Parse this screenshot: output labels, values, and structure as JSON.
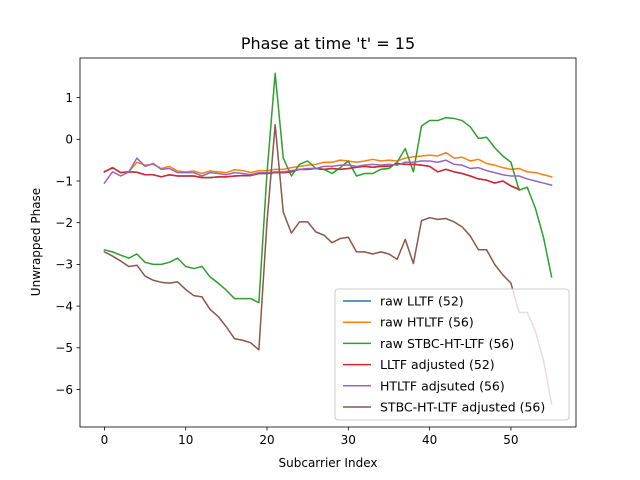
{
  "chart_data": {
    "type": "line",
    "title": "Phase at time 't' = 15",
    "xlabel": "Subcarrier Index",
    "ylabel": "Unwrapped Phase",
    "xlim": [
      -3,
      58
    ],
    "ylim": [
      -6.9,
      1.95
    ],
    "xticks": [
      0,
      10,
      20,
      30,
      40,
      50
    ],
    "yticks": [
      1,
      0,
      -1,
      -2,
      -3,
      -4,
      -5,
      -6
    ],
    "ytick_labels": [
      "1",
      "0",
      "−1",
      "−2",
      "−3",
      "−4",
      "−5",
      "−6"
    ],
    "grid": false,
    "legend_position": "lower-right",
    "series": [
      {
        "name": "raw LLTF (52)",
        "color": "#1f77b4",
        "x": [
          0,
          1,
          2,
          3,
          4,
          5,
          6,
          7,
          8,
          9,
          10,
          11,
          12,
          13,
          14,
          15,
          16,
          17,
          18,
          19,
          20,
          21,
          22,
          23,
          24,
          25,
          26,
          27,
          28,
          29,
          30,
          31,
          32,
          33,
          34,
          35,
          36,
          37,
          38,
          39,
          40,
          41,
          42,
          43,
          44,
          45,
          46,
          47,
          48,
          49,
          50,
          51
        ],
        "y": [
          -0.78,
          -0.68,
          -0.8,
          -0.78,
          -0.79,
          -0.85,
          -0.85,
          -0.9,
          -0.85,
          -0.88,
          -0.88,
          -0.88,
          -0.92,
          -0.92,
          -0.9,
          -0.9,
          -0.88,
          -0.87,
          -0.87,
          -0.82,
          -0.82,
          -0.8,
          -0.8,
          -0.78,
          -0.72,
          -0.72,
          -0.7,
          -0.72,
          -0.7,
          -0.72,
          -0.7,
          -0.67,
          -0.65,
          -0.67,
          -0.65,
          -0.65,
          -0.58,
          -0.6,
          -0.6,
          -0.62,
          -0.65,
          -0.78,
          -0.72,
          -0.78,
          -0.82,
          -0.88,
          -0.95,
          -0.98,
          -1.05,
          -1.0,
          -1.12,
          -1.2
        ]
      },
      {
        "name": "raw HTLTF (56)",
        "color": "#ff7f0e",
        "x": [
          0,
          1,
          2,
          3,
          4,
          5,
          6,
          7,
          8,
          9,
          10,
          11,
          12,
          13,
          14,
          15,
          16,
          17,
          18,
          19,
          20,
          21,
          22,
          23,
          24,
          25,
          26,
          27,
          28,
          29,
          30,
          31,
          32,
          33,
          34,
          35,
          36,
          37,
          38,
          39,
          40,
          41,
          42,
          43,
          44,
          45,
          46,
          47,
          48,
          49,
          50,
          51,
          52,
          53,
          54,
          55
        ],
        "y": [
          -0.78,
          -0.68,
          -0.8,
          -0.78,
          -0.55,
          -0.62,
          -0.6,
          -0.7,
          -0.65,
          -0.76,
          -0.78,
          -0.76,
          -0.82,
          -0.76,
          -0.78,
          -0.8,
          -0.73,
          -0.75,
          -0.8,
          -0.75,
          -0.75,
          -0.72,
          -0.72,
          -0.68,
          -0.65,
          -0.62,
          -0.6,
          -0.55,
          -0.55,
          -0.5,
          -0.52,
          -0.55,
          -0.52,
          -0.48,
          -0.52,
          -0.5,
          -0.52,
          -0.45,
          -0.42,
          -0.4,
          -0.38,
          -0.4,
          -0.32,
          -0.45,
          -0.43,
          -0.52,
          -0.48,
          -0.58,
          -0.62,
          -0.68,
          -0.72,
          -0.7,
          -0.78,
          -0.8,
          -0.85,
          -0.9
        ]
      },
      {
        "name": "raw STBC-HT-LTF (56)",
        "color": "#2ca02c",
        "x": [
          0,
          1,
          2,
          3,
          4,
          5,
          6,
          7,
          8,
          9,
          10,
          11,
          12,
          13,
          14,
          15,
          16,
          17,
          18,
          19,
          20,
          21,
          22,
          23,
          24,
          25,
          26,
          27,
          28,
          29,
          30,
          31,
          32,
          33,
          34,
          35,
          36,
          37,
          38,
          39,
          40,
          41,
          42,
          43,
          44,
          45,
          46,
          47,
          48,
          49,
          50,
          51,
          52,
          53,
          54,
          55
        ],
        "y": [
          -2.65,
          -2.7,
          -2.78,
          -2.85,
          -2.75,
          -2.95,
          -3.0,
          -3.0,
          -2.95,
          -2.85,
          -3.05,
          -3.1,
          -3.05,
          -3.3,
          -3.45,
          -3.62,
          -3.82,
          -3.82,
          -3.82,
          -3.92,
          -0.8,
          1.58,
          -0.45,
          -0.88,
          -0.6,
          -0.52,
          -0.7,
          -0.72,
          -0.82,
          -0.68,
          -0.52,
          -0.88,
          -0.82,
          -0.82,
          -0.72,
          -0.7,
          -0.55,
          -0.22,
          -0.78,
          0.32,
          0.45,
          0.45,
          0.52,
          0.5,
          0.45,
          0.3,
          0.02,
          0.05,
          -0.2,
          -0.4,
          -0.55,
          -1.22,
          -1.15,
          -1.65,
          -2.35,
          -3.3
        ]
      },
      {
        "name": "LLTF adjusted (52)",
        "color": "#d62728",
        "x": [
          0,
          1,
          2,
          3,
          4,
          5,
          6,
          7,
          8,
          9,
          10,
          11,
          12,
          13,
          14,
          15,
          16,
          17,
          18,
          19,
          20,
          21,
          22,
          23,
          24,
          25,
          26,
          27,
          28,
          29,
          30,
          31,
          32,
          33,
          34,
          35,
          36,
          37,
          38,
          39,
          40,
          41,
          42,
          43,
          44,
          45,
          46,
          47,
          48,
          49,
          50,
          51
        ],
        "y": [
          -0.78,
          -0.68,
          -0.8,
          -0.78,
          -0.79,
          -0.85,
          -0.85,
          -0.9,
          -0.85,
          -0.88,
          -0.88,
          -0.88,
          -0.92,
          -0.92,
          -0.9,
          -0.9,
          -0.88,
          -0.87,
          -0.87,
          -0.82,
          -0.82,
          -0.8,
          -0.8,
          -0.78,
          -0.72,
          -0.72,
          -0.7,
          -0.72,
          -0.7,
          -0.72,
          -0.7,
          -0.67,
          -0.65,
          -0.67,
          -0.65,
          -0.65,
          -0.58,
          -0.6,
          -0.6,
          -0.62,
          -0.65,
          -0.78,
          -0.72,
          -0.78,
          -0.82,
          -0.88,
          -0.95,
          -0.98,
          -1.05,
          -1.0,
          -1.12,
          -1.2
        ]
      },
      {
        "name": "HTLTF adjsuted (56)",
        "color": "#9467bd",
        "x": [
          0,
          1,
          2,
          3,
          4,
          5,
          6,
          7,
          8,
          9,
          10,
          11,
          12,
          13,
          14,
          15,
          16,
          17,
          18,
          19,
          20,
          21,
          22,
          23,
          24,
          25,
          26,
          27,
          28,
          29,
          30,
          31,
          32,
          33,
          34,
          35,
          36,
          37,
          38,
          39,
          40,
          41,
          42,
          43,
          44,
          45,
          46,
          47,
          48,
          49,
          50,
          51,
          52,
          53,
          54,
          55
        ],
        "y": [
          -1.05,
          -0.78,
          -0.88,
          -0.78,
          -0.45,
          -0.65,
          -0.58,
          -0.72,
          -0.7,
          -0.8,
          -0.8,
          -0.8,
          -0.88,
          -0.8,
          -0.82,
          -0.85,
          -0.8,
          -0.82,
          -0.85,
          -0.8,
          -0.8,
          -0.78,
          -0.78,
          -0.75,
          -0.72,
          -0.7,
          -0.7,
          -0.65,
          -0.65,
          -0.62,
          -0.62,
          -0.65,
          -0.62,
          -0.6,
          -0.62,
          -0.6,
          -0.62,
          -0.55,
          -0.55,
          -0.52,
          -0.52,
          -0.55,
          -0.5,
          -0.6,
          -0.62,
          -0.7,
          -0.68,
          -0.75,
          -0.8,
          -0.85,
          -0.88,
          -0.88,
          -0.95,
          -1.0,
          -1.05,
          -1.1
        ]
      },
      {
        "name": "STBC-HT-LTF adjusted (56)",
        "color": "#8c564b",
        "x": [
          0,
          1,
          2,
          3,
          4,
          5,
          6,
          7,
          8,
          9,
          10,
          11,
          12,
          13,
          14,
          15,
          16,
          17,
          18,
          19,
          20,
          21,
          22,
          23,
          24,
          25,
          26,
          27,
          28,
          29,
          30,
          31,
          32,
          33,
          34,
          35,
          36,
          37,
          38,
          39,
          40,
          41,
          42,
          43,
          44,
          45,
          46,
          47,
          48,
          49,
          50,
          51,
          52,
          53,
          54,
          55
        ],
        "y": [
          -2.7,
          -2.8,
          -2.92,
          -3.05,
          -3.02,
          -3.28,
          -3.38,
          -3.43,
          -3.45,
          -3.42,
          -3.6,
          -3.75,
          -3.78,
          -4.08,
          -4.25,
          -4.5,
          -4.78,
          -4.82,
          -4.88,
          -5.05,
          -1.98,
          0.35,
          -1.75,
          -2.25,
          -1.98,
          -1.98,
          -2.22,
          -2.3,
          -2.48,
          -2.38,
          -2.35,
          -2.7,
          -2.7,
          -2.75,
          -2.7,
          -2.75,
          -2.88,
          -2.4,
          -2.98,
          -1.95,
          -1.88,
          -1.92,
          -1.9,
          -1.98,
          -2.1,
          -2.32,
          -2.65,
          -2.65,
          -3.0,
          -3.25,
          -3.45,
          -4.15,
          -4.15,
          -4.6,
          -5.3,
          -6.35
        ]
      }
    ]
  }
}
